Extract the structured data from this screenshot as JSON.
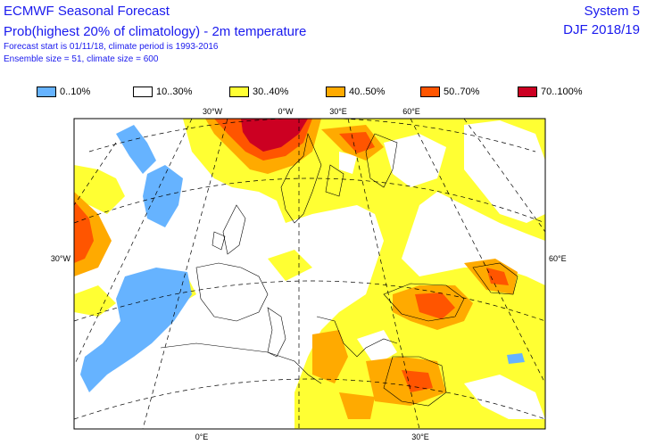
{
  "header": {
    "title": "ECMWF Seasonal Forecast",
    "subtitle": "Prob(highest 20% of climatology) - 2m temperature",
    "forecast_info": "Forecast start is 01/11/18, climate period is 1993-2016",
    "ensemble_info": "Ensemble size = 51, climate size = 600",
    "system": "System 5",
    "season": "DJF 2018/19"
  },
  "legend": [
    {
      "label": "0..10%",
      "color": "#66b3ff"
    },
    {
      "label": "10..30%",
      "color": "#ffffff"
    },
    {
      "label": "30..40%",
      "color": "#ffff33"
    },
    {
      "label": "40..50%",
      "color": "#ffaa00"
    },
    {
      "label": "50..70%",
      "color": "#ff5500"
    },
    {
      "label": "70..100%",
      "color": "#cc0022"
    }
  ],
  "map": {
    "top_ticks": [
      "30°W",
      "0°W",
      "30°E",
      "60°E"
    ],
    "bottom_ticks": [
      "0°E",
      "30°E"
    ],
    "left_tick": "30°W",
    "right_tick": "60°E"
  }
}
